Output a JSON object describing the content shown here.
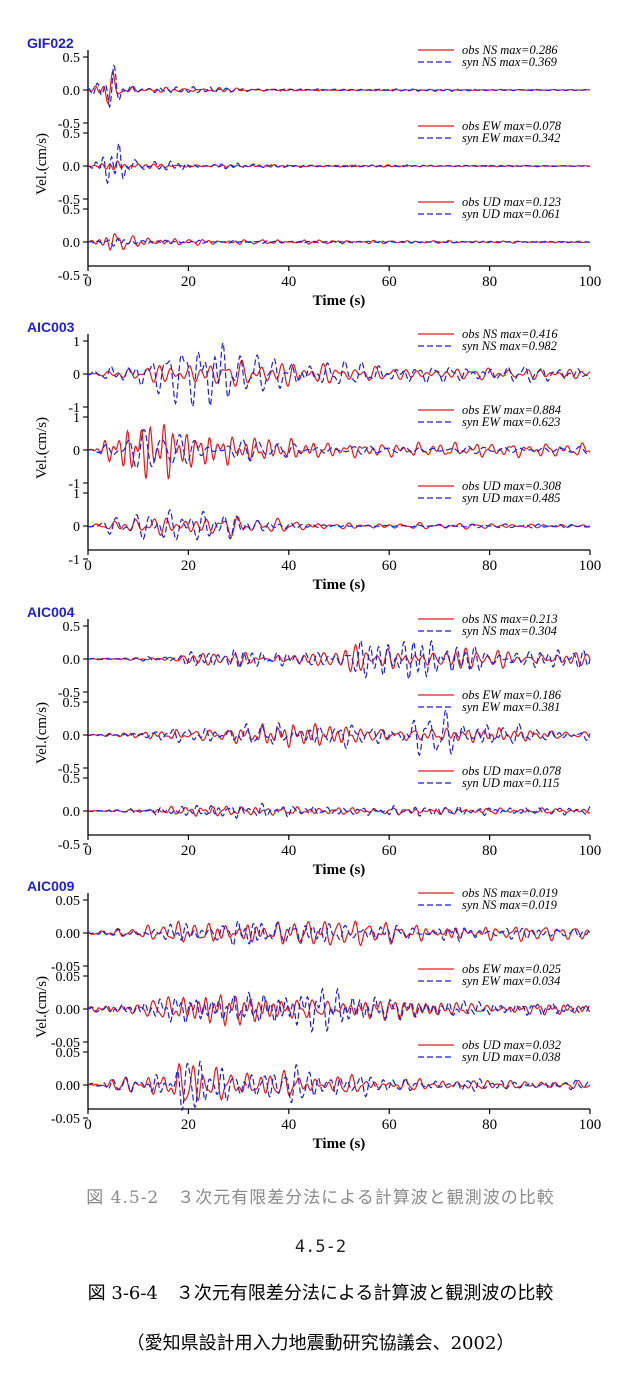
{
  "chart_data": [
    {
      "type": "line",
      "title": "GIF022",
      "xlabel": "Time (s)",
      "ylabel": "Vel.(cm/s)",
      "xlim": [
        0,
        100
      ],
      "xticks": [
        "0",
        "20",
        "40",
        "60",
        "80",
        "100"
      ],
      "components": [
        {
          "name": "NS",
          "ylim": [
            -0.5,
            0.5
          ],
          "yticks": [
            "0.5",
            "0.0",
            "-0.5"
          ],
          "legend": [
            {
              "label": "obs NS max=0.286",
              "color": "#e41a1c"
            },
            {
              "label": "syn NS max=0.369",
              "color": "#1f1fd6"
            }
          ],
          "obs_max": 0.286,
          "syn_max": 0.369,
          "obs_env": [
            [
              0,
              0.02
            ],
            [
              3,
              0.1
            ],
            [
              5,
              0.28
            ],
            [
              7,
              0.12
            ],
            [
              10,
              0.03
            ],
            [
              25,
              0.03
            ],
            [
              40,
              0.01
            ],
            [
              100,
              0.005
            ]
          ],
          "syn_env": [
            [
              0,
              0.02
            ],
            [
              3,
              0.12
            ],
            [
              5,
              0.37
            ],
            [
              7,
              0.15
            ],
            [
              10,
              0.04
            ],
            [
              25,
              0.04
            ],
            [
              40,
              0.015
            ],
            [
              100,
              0.008
            ]
          ]
        },
        {
          "name": "EW",
          "ylim": [
            -0.5,
            0.5
          ],
          "yticks": [
            "0.5",
            "0.0",
            "-0.5"
          ],
          "legend": [
            {
              "label": "obs EW max=0.078",
              "color": "#e41a1c"
            },
            {
              "label": "syn EW max=0.342",
              "color": "#1f1fd6"
            }
          ],
          "obs_max": 0.078,
          "syn_max": 0.342,
          "obs_env": [
            [
              0,
              0.01
            ],
            [
              4,
              0.05
            ],
            [
              6,
              0.078
            ],
            [
              10,
              0.03
            ],
            [
              25,
              0.02
            ],
            [
              100,
              0.005
            ]
          ],
          "syn_env": [
            [
              0,
              0.01
            ],
            [
              4,
              0.25
            ],
            [
              6,
              0.34
            ],
            [
              8,
              0.15
            ],
            [
              12,
              0.08
            ],
            [
              22,
              0.06
            ],
            [
              40,
              0.02
            ],
            [
              100,
              0.005
            ]
          ]
        },
        {
          "name": "UD",
          "ylim": [
            -0.5,
            0.5
          ],
          "yticks": [
            "0.5",
            "0.0",
            "-0.5"
          ],
          "legend": [
            {
              "label": "obs UD max=0.123",
              "color": "#e41a1c"
            },
            {
              "label": "syn UD max=0.061",
              "color": "#1f1fd6"
            }
          ],
          "obs_max": 0.123,
          "syn_max": 0.061,
          "obs_env": [
            [
              0,
              0.01
            ],
            [
              4,
              0.07
            ],
            [
              6,
              0.12
            ],
            [
              9,
              0.04
            ],
            [
              25,
              0.02
            ],
            [
              100,
              0.005
            ]
          ],
          "syn_env": [
            [
              0,
              0.01
            ],
            [
              4,
              0.04
            ],
            [
              6,
              0.06
            ],
            [
              9,
              0.03
            ],
            [
              25,
              0.015
            ],
            [
              100,
              0.005
            ]
          ]
        }
      ]
    },
    {
      "type": "line",
      "title": "AIC003",
      "xlabel": "Time (s)",
      "ylabel": "Vel.(cm/s)",
      "xlim": [
        0,
        100
      ],
      "xticks": [
        "0",
        "20",
        "40",
        "60",
        "80",
        "100"
      ],
      "components": [
        {
          "name": "NS",
          "ylim": [
            -1,
            1
          ],
          "yticks": [
            "1",
            "0",
            "-1"
          ],
          "legend": [
            {
              "label": "obs NS max=0.416",
              "color": "#e41a1c"
            },
            {
              "label": "syn NS max=0.982",
              "color": "#1f1fd6"
            }
          ],
          "obs_max": 0.416,
          "syn_max": 0.982,
          "obs_env": [
            [
              0,
              0.01
            ],
            [
              5,
              0.1
            ],
            [
              15,
              0.3
            ],
            [
              30,
              0.3
            ],
            [
              40,
              0.42
            ],
            [
              50,
              0.2
            ],
            [
              70,
              0.15
            ],
            [
              100,
              0.15
            ]
          ],
          "syn_env": [
            [
              0,
              0.01
            ],
            [
              5,
              0.15
            ],
            [
              15,
              0.3
            ],
            [
              23,
              0.6
            ],
            [
              26,
              0.98
            ],
            [
              30,
              0.3
            ],
            [
              45,
              0.2
            ],
            [
              70,
              0.12
            ],
            [
              100,
              0.12
            ]
          ]
        },
        {
          "name": "EW",
          "ylim": [
            -1,
            1
          ],
          "yticks": [
            "1",
            "0",
            "-1"
          ],
          "legend": [
            {
              "label": "obs EW max=0.884",
              "color": "#e41a1c"
            },
            {
              "label": "syn EW max=0.623",
              "color": "#1f1fd6"
            }
          ],
          "obs_max": 0.884,
          "syn_max": 0.623,
          "obs_env": [
            [
              0,
              0.01
            ],
            [
              5,
              0.4
            ],
            [
              10,
              0.8
            ],
            [
              15,
              0.88
            ],
            [
              20,
              0.5
            ],
            [
              30,
              0.35
            ],
            [
              50,
              0.15
            ],
            [
              100,
              0.12
            ]
          ],
          "syn_env": [
            [
              0,
              0.01
            ],
            [
              5,
              0.4
            ],
            [
              10,
              0.62
            ],
            [
              15,
              0.6
            ],
            [
              20,
              0.45
            ],
            [
              30,
              0.35
            ],
            [
              50,
              0.12
            ],
            [
              100,
              0.1
            ]
          ]
        },
        {
          "name": "UD",
          "ylim": [
            -1,
            1
          ],
          "yticks": [
            "1",
            "0",
            "-1"
          ],
          "legend": [
            {
              "label": "obs UD max=0.308",
              "color": "#e41a1c"
            },
            {
              "label": "syn UD max=0.485",
              "color": "#1f1fd6"
            }
          ],
          "obs_max": 0.308,
          "syn_max": 0.485,
          "obs_env": [
            [
              0,
              0.01
            ],
            [
              5,
              0.15
            ],
            [
              15,
              0.3
            ],
            [
              30,
              0.25
            ],
            [
              45,
              0.1
            ],
            [
              100,
              0.05
            ]
          ],
          "syn_env": [
            [
              0,
              0.01
            ],
            [
              5,
              0.3
            ],
            [
              15,
              0.48
            ],
            [
              28,
              0.45
            ],
            [
              35,
              0.2
            ],
            [
              50,
              0.08
            ],
            [
              100,
              0.05
            ]
          ]
        }
      ]
    },
    {
      "type": "line",
      "title": "AIC004",
      "xlabel": "Time (s)",
      "ylabel": "Vel.(cm/s)",
      "xlim": [
        0,
        100
      ],
      "xticks": [
        "0",
        "20",
        "40",
        "60",
        "80",
        "100"
      ],
      "components": [
        {
          "name": "NS",
          "ylim": [
            -0.5,
            0.5
          ],
          "yticks": [
            "0.5",
            "0.0",
            "-0.5"
          ],
          "legend": [
            {
              "label": "obs NS max=0.213",
              "color": "#e41a1c"
            },
            {
              "label": "syn NS max=0.304",
              "color": "#1f1fd6"
            }
          ],
          "obs_max": 0.213,
          "syn_max": 0.304,
          "obs_env": [
            [
              0,
              0.005
            ],
            [
              10,
              0.03
            ],
            [
              25,
              0.1
            ],
            [
              45,
              0.12
            ],
            [
              55,
              0.21
            ],
            [
              65,
              0.2
            ],
            [
              80,
              0.14
            ],
            [
              100,
              0.12
            ]
          ],
          "syn_env": [
            [
              0,
              0.005
            ],
            [
              10,
              0.03
            ],
            [
              25,
              0.12
            ],
            [
              45,
              0.15
            ],
            [
              55,
              0.3
            ],
            [
              65,
              0.28
            ],
            [
              80,
              0.2
            ],
            [
              100,
              0.15
            ]
          ]
        },
        {
          "name": "EW",
          "ylim": [
            -0.5,
            0.5
          ],
          "yticks": [
            "0.5",
            "0.0",
            "-0.5"
          ],
          "legend": [
            {
              "label": "obs EW max=0.186",
              "color": "#e41a1c"
            },
            {
              "label": "syn EW max=0.381",
              "color": "#1f1fd6"
            }
          ],
          "obs_max": 0.186,
          "syn_max": 0.381,
          "obs_env": [
            [
              0,
              0.005
            ],
            [
              10,
              0.05
            ],
            [
              25,
              0.15
            ],
            [
              45,
              0.18
            ],
            [
              60,
              0.14
            ],
            [
              80,
              0.1
            ],
            [
              100,
              0.08
            ]
          ],
          "syn_env": [
            [
              0,
              0.005
            ],
            [
              10,
              0.05
            ],
            [
              25,
              0.15
            ],
            [
              45,
              0.18
            ],
            [
              60,
              0.15
            ],
            [
              70,
              0.38
            ],
            [
              75,
              0.25
            ],
            [
              90,
              0.1
            ],
            [
              100,
              0.08
            ]
          ]
        },
        {
          "name": "UD",
          "ylim": [
            -0.5,
            0.5
          ],
          "yticks": [
            "0.5",
            "0.0",
            "-0.5"
          ],
          "legend": [
            {
              "label": "obs UD max=0.078",
              "color": "#e41a1c"
            },
            {
              "label": "syn UD max=0.115",
              "color": "#1f1fd6"
            }
          ],
          "obs_max": 0.078,
          "syn_max": 0.115,
          "obs_env": [
            [
              0,
              0.005
            ],
            [
              10,
              0.02
            ],
            [
              22,
              0.078
            ],
            [
              40,
              0.05
            ],
            [
              70,
              0.04
            ],
            [
              100,
              0.03
            ]
          ],
          "syn_env": [
            [
              0,
              0.005
            ],
            [
              10,
              0.03
            ],
            [
              22,
              0.11
            ],
            [
              40,
              0.07
            ],
            [
              85,
              0.06
            ],
            [
              100,
              0.05
            ]
          ]
        }
      ]
    },
    {
      "type": "line",
      "title": "AIC009",
      "xlabel": "Time (s)",
      "ylabel": "Vel.(cm/s)",
      "xlim": [
        0,
        100
      ],
      "xticks": [
        "0",
        "20",
        "40",
        "60",
        "80",
        "100"
      ],
      "components": [
        {
          "name": "NS",
          "ylim": [
            -0.05,
            0.05
          ],
          "yticks": [
            "0.05",
            "0.00",
            "-0.05"
          ],
          "legend": [
            {
              "label": "obs NS max=0.019",
              "color": "#e41a1c"
            },
            {
              "label": "syn NS max=0.019",
              "color": "#1f1fd6"
            }
          ],
          "obs_max": 0.019,
          "syn_max": 0.019,
          "obs_env": [
            [
              0,
              0.002
            ],
            [
              10,
              0.005
            ],
            [
              20,
              0.012
            ],
            [
              35,
              0.015
            ],
            [
              50,
              0.012
            ],
            [
              80,
              0.008
            ],
            [
              100,
              0.006
            ]
          ],
          "syn_env": [
            [
              0,
              0.002
            ],
            [
              10,
              0.006
            ],
            [
              20,
              0.012
            ],
            [
              35,
              0.019
            ],
            [
              50,
              0.012
            ],
            [
              80,
              0.008
            ],
            [
              100,
              0.006
            ]
          ]
        },
        {
          "name": "EW",
          "ylim": [
            -0.05,
            0.05
          ],
          "yticks": [
            "0.05",
            "0.00",
            "-0.05"
          ],
          "legend": [
            {
              "label": "obs EW max=0.025",
              "color": "#e41a1c"
            },
            {
              "label": "syn EW max=0.034",
              "color": "#1f1fd6"
            }
          ],
          "obs_max": 0.025,
          "syn_max": 0.034,
          "obs_env": [
            [
              0,
              0.003
            ],
            [
              10,
              0.01
            ],
            [
              18,
              0.025
            ],
            [
              30,
              0.018
            ],
            [
              50,
              0.015
            ],
            [
              80,
              0.008
            ],
            [
              100,
              0.006
            ]
          ],
          "syn_env": [
            [
              0,
              0.003
            ],
            [
              10,
              0.01
            ],
            [
              18,
              0.02
            ],
            [
              30,
              0.02
            ],
            [
              48,
              0.034
            ],
            [
              60,
              0.015
            ],
            [
              80,
              0.01
            ],
            [
              100,
              0.008
            ]
          ]
        },
        {
          "name": "UD",
          "ylim": [
            -0.05,
            0.05
          ],
          "yticks": [
            "0.05",
            "0.00",
            "-0.05"
          ],
          "legend": [
            {
              "label": "obs UD max=0.032",
              "color": "#e41a1c"
            },
            {
              "label": "syn UD max=0.038",
              "color": "#1f1fd6"
            }
          ],
          "obs_max": 0.032,
          "syn_max": 0.038,
          "obs_env": [
            [
              0,
              0.002
            ],
            [
              10,
              0.012
            ],
            [
              20,
              0.032
            ],
            [
              30,
              0.02
            ],
            [
              45,
              0.015
            ],
            [
              60,
              0.008
            ],
            [
              100,
              0.005
            ]
          ],
          "syn_env": [
            [
              0,
              0.002
            ],
            [
              10,
              0.015
            ],
            [
              19,
              0.038
            ],
            [
              30,
              0.025
            ],
            [
              48,
              0.025
            ],
            [
              60,
              0.01
            ],
            [
              100,
              0.006
            ]
          ]
        }
      ]
    }
  ],
  "captions": {
    "faded": "図 4.5-2　３次元有限差分法による計算波と観測波の比較",
    "page_number": "4.5-2",
    "figure": "図 3-6-4　３次元有限差分法による計算波と観測波の比較",
    "source": "（愛知県設計用入力地震動研究協議会、2002）"
  }
}
